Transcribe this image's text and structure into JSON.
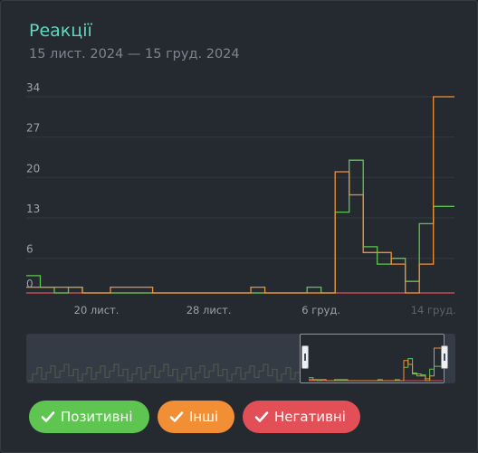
{
  "header": {
    "title": "Реакції",
    "date_range": "15 лист. 2024 — 15 груд. 2024"
  },
  "legend": {
    "positive": "Позитивні",
    "other": "Інші",
    "negative": "Негативні"
  },
  "colors": {
    "positive": "#5ec650",
    "other": "#f28f34",
    "negative": "#e34f56",
    "title": "#5fd8c0"
  },
  "chart_data": {
    "type": "line",
    "step": true,
    "title": "Реакції",
    "subtitle": "15 лист. 2024 — 15 груд. 2024",
    "x_ticks": [
      "20 лист.",
      "28 лист.",
      "6 груд.",
      "14 груд."
    ],
    "y_ticks": [
      0,
      6,
      13,
      20,
      27,
      34
    ],
    "ylim": [
      0,
      34
    ],
    "x": [
      "15 лист.",
      "16 лист.",
      "17 лист.",
      "18 лист.",
      "19 лист.",
      "20 лист.",
      "21 лист.",
      "22 лист.",
      "23 лист.",
      "24 лист.",
      "25 лист.",
      "26 лист.",
      "27 лист.",
      "28 лист.",
      "29 лист.",
      "30 лист.",
      "1 груд.",
      "2 груд.",
      "3 груд.",
      "4 груд.",
      "5 груд.",
      "6 груд.",
      "7 груд.",
      "8 груд.",
      "9 груд.",
      "10 груд.",
      "11 груд.",
      "12 груд.",
      "13 груд.",
      "14 груд.",
      "15 груд."
    ],
    "series": [
      {
        "name": "Позитивні",
        "values": [
          3,
          1,
          0,
          1,
          0,
          0,
          0,
          0,
          0,
          0,
          0,
          0,
          0,
          0,
          0,
          0,
          0,
          0,
          0,
          0,
          1,
          0,
          14,
          23,
          8,
          5,
          6,
          2,
          12,
          15,
          15
        ]
      },
      {
        "name": "Інші",
        "values": [
          1,
          1,
          1,
          1,
          0,
          0,
          1,
          1,
          1,
          0,
          0,
          0,
          0,
          0,
          0,
          0,
          1,
          0,
          0,
          0,
          0,
          0,
          21,
          17,
          7,
          7,
          5,
          0,
          5,
          34,
          34
        ]
      },
      {
        "name": "Негативні",
        "values": [
          0,
          0,
          0,
          0,
          0,
          0,
          0,
          0,
          0,
          0,
          0,
          0,
          0,
          0,
          0,
          0,
          0,
          0,
          0,
          0,
          0,
          0,
          0,
          0,
          0,
          0,
          0,
          0,
          0,
          0,
          0
        ]
      }
    ]
  }
}
